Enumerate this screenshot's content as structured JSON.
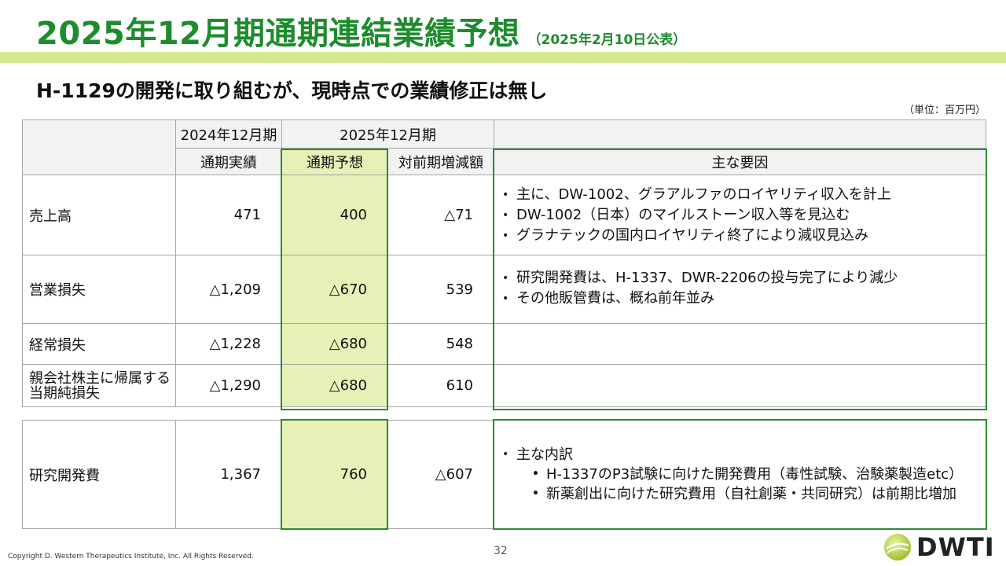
{
  "title": {
    "main": "2025年12月期通期連結業績予想",
    "note": "（2025年2月10日公表）"
  },
  "subtitle": "H-1129の開発に取り組むが、現時点での業績修正は無し",
  "unit": "（単位：百万円）",
  "table": {
    "header": {
      "fy2024": "2024年12月期",
      "fy2025": "2025年12月期",
      "actual": "通期実績",
      "forecast": "通期予想",
      "change": "対前期増減額",
      "factors": "主な要因"
    },
    "rows": [
      {
        "label": "売上高",
        "actual": "471",
        "forecast": "400",
        "change": "△71",
        "factors": [
          "主に、DW-1002、グラアルファのロイヤリティ収入を計上",
          "DW-1002（日本）のマイルストーン収入等を見込む",
          "グラナテックの国内ロイヤリティ終了により減収見込み"
        ]
      },
      {
        "label": "営業損失",
        "actual": "△1,209",
        "forecast": "△670",
        "change": "539",
        "factors": [
          "研究開発費は、H-1337、DWR-2206の投与完了により減少",
          "その他販管費は、概ね前年並み"
        ]
      },
      {
        "label": "経常損失",
        "actual": "△1,228",
        "forecast": "△680",
        "change": "548",
        "factors": []
      },
      {
        "label_line1": "親会社株主に帰属する",
        "label_line2": "当期純損失",
        "actual": "△1,290",
        "forecast": "△680",
        "change": "610",
        "factors": []
      }
    ]
  },
  "rd": {
    "label": "研究開発費",
    "actual": "1,367",
    "forecast": "760",
    "change": "△607",
    "factor_main": "主な内訳",
    "factor_sub": [
      "H-1337のP3試験に向けた開発費用（毒性試験、治験薬製造etc）",
      "新薬創出に向けた研究費用（自社創薬・共同研究）は前期比増加"
    ]
  },
  "footer": {
    "copyright": "Copyright D. Western Therapeutics Institute, Inc. All Rights Reserved.",
    "page": "32",
    "logo": "DWTI"
  },
  "colors": {
    "title_green": "#1e8c2e",
    "band": "#d4e88f",
    "forecast_fill": "#e6f0b7",
    "box_border": "#2d8a35",
    "header_fill": "#f2f2f2"
  }
}
